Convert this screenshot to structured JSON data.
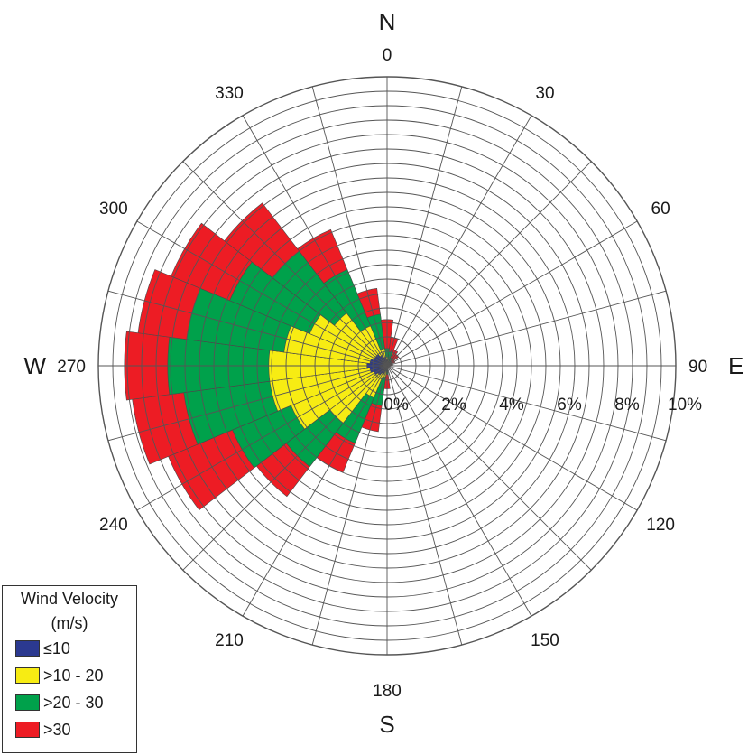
{
  "chart_data": {
    "type": "wind-rose",
    "sector_width_deg": 15,
    "radial_max_percent": 10,
    "radial_tick_labels": [
      "0%",
      "2%",
      "4%",
      "6%",
      "8%",
      "10%"
    ],
    "angle_labels": [
      "0",
      "30",
      "60",
      "90",
      "120",
      "150",
      "180",
      "210",
      "240",
      "270",
      "300",
      "330"
    ],
    "cardinals": {
      "N": "N",
      "E": "E",
      "S": "S",
      "W": "W"
    },
    "legend": {
      "title": "Wind Velocity",
      "units": "(m/s)",
      "position": "bottom-left"
    },
    "series": [
      {
        "name": "≤10",
        "color": "#2b3990"
      },
      {
        "name": ">10 - 20",
        "color": "#f7ec13"
      },
      {
        "name": ">20 - 30",
        "color": "#00a14b"
      },
      {
        "name": ">30",
        "color": "#ed1c24"
      }
    ],
    "directions": [
      180,
      195,
      210,
      225,
      240,
      255,
      270,
      285,
      300,
      315,
      330,
      345,
      0,
      15,
      30,
      45,
      60,
      75,
      90
    ],
    "cumulative_percent": [
      [
        0.1,
        0.1,
        0.3,
        0.8
      ],
      [
        0.2,
        0.4,
        1.4,
        2.3
      ],
      [
        0.3,
        1.2,
        2.9,
        4.0
      ],
      [
        0.4,
        2.5,
        4.4,
        5.7
      ],
      [
        0.5,
        3.6,
        5.8,
        8.2
      ],
      [
        0.6,
        4.1,
        7.1,
        8.9
      ],
      [
        0.7,
        4.1,
        7.6,
        9.1
      ],
      [
        0.6,
        3.6,
        7.0,
        8.7
      ],
      [
        0.5,
        2.9,
        5.9,
        8.1
      ],
      [
        0.5,
        2.3,
        5.0,
        7.1
      ],
      [
        0.4,
        1.5,
        3.6,
        5.1
      ],
      [
        0.3,
        0.6,
        1.8,
        2.7
      ],
      [
        0.2,
        0.3,
        0.6,
        1.6
      ],
      [
        0.1,
        0.2,
        0.5,
        1.0
      ],
      [
        0.1,
        0.1,
        0.3,
        0.6
      ],
      [
        0.1,
        0.1,
        0.2,
        0.5
      ],
      [
        0.1,
        0.1,
        0.1,
        0.3
      ],
      [
        0.1,
        0.1,
        0.1,
        0.2
      ],
      [
        0.0,
        0.0,
        0.0,
        0.0
      ]
    ]
  }
}
